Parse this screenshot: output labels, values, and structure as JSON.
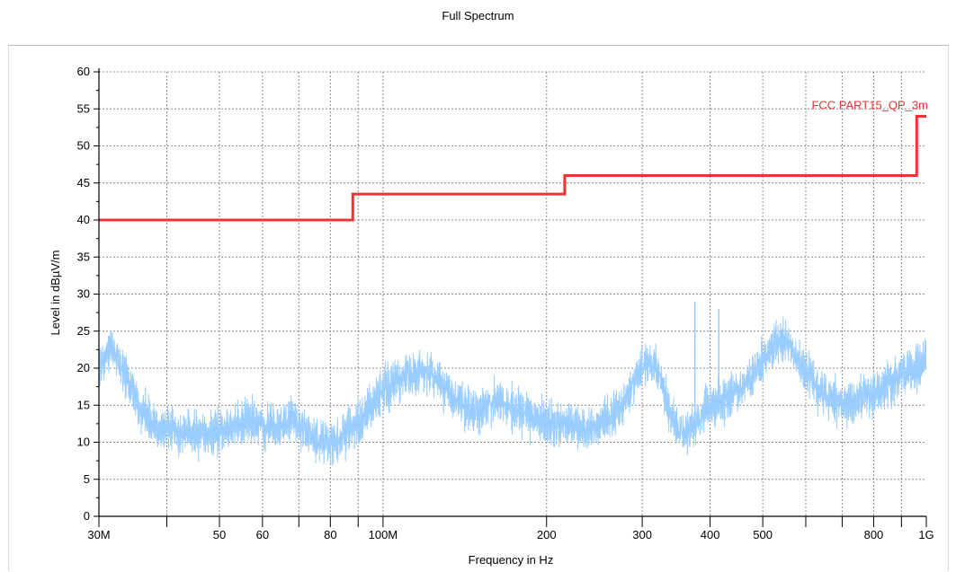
{
  "chart_data": {
    "type": "line",
    "title": "Full Spectrum",
    "xlabel": "Frequency in Hz",
    "ylabel": "Level in dBµV/m",
    "x_scale": "log",
    "xlim": [
      30000000,
      1000000000
    ],
    "ylim": [
      0,
      60
    ],
    "grid": true,
    "x_ticks": [
      {
        "value": 30000000,
        "label": "30M"
      },
      {
        "value": 50000000,
        "label": "50"
      },
      {
        "value": 60000000,
        "label": "60"
      },
      {
        "value": 80000000,
        "label": "80"
      },
      {
        "value": 100000000,
        "label": "100M"
      },
      {
        "value": 200000000,
        "label": "200"
      },
      {
        "value": 300000000,
        "label": "300"
      },
      {
        "value": 400000000,
        "label": "400"
      },
      {
        "value": 500000000,
        "label": "500"
      },
      {
        "value": 800000000,
        "label": "800"
      },
      {
        "value": 1000000000,
        "label": "1G"
      }
    ],
    "x_minor_ticks": [
      40000000,
      70000000,
      90000000,
      600000000,
      700000000,
      900000000
    ],
    "y_ticks": [
      0,
      5,
      10,
      15,
      20,
      25,
      30,
      35,
      40,
      45,
      50,
      55,
      60
    ],
    "series": [
      {
        "name": "FCC PART15_QP_3m",
        "color": "#ee3333",
        "kind": "step",
        "points": [
          [
            30000000,
            40
          ],
          [
            88000000,
            40
          ],
          [
            88000000,
            43.5
          ],
          [
            216000000,
            43.5
          ],
          [
            216000000,
            46
          ],
          [
            960000000,
            46
          ],
          [
            960000000,
            54
          ],
          [
            1000000000,
            54
          ]
        ]
      },
      {
        "color": "#99ccff",
        "kind": "noise",
        "points": [
          [
            30000000,
            20
          ],
          [
            31500000,
            23
          ],
          [
            32500000,
            21
          ],
          [
            34000000,
            18
          ],
          [
            36000000,
            14
          ],
          [
            38000000,
            12.5
          ],
          [
            41000000,
            11.5
          ],
          [
            44000000,
            11
          ],
          [
            47000000,
            11
          ],
          [
            52000000,
            12
          ],
          [
            56000000,
            13
          ],
          [
            60000000,
            12.5
          ],
          [
            64000000,
            12
          ],
          [
            68000000,
            13
          ],
          [
            71000000,
            12
          ],
          [
            76000000,
            10
          ],
          [
            80000000,
            9.5
          ],
          [
            84000000,
            11
          ],
          [
            88000000,
            12
          ],
          [
            93000000,
            14
          ],
          [
            100000000,
            17
          ],
          [
            110000000,
            19
          ],
          [
            120000000,
            19.5
          ],
          [
            128000000,
            18
          ],
          [
            135000000,
            16
          ],
          [
            145000000,
            14
          ],
          [
            155000000,
            15
          ],
          [
            165000000,
            15.5
          ],
          [
            175000000,
            14.5
          ],
          [
            190000000,
            13
          ],
          [
            210000000,
            12.5
          ],
          [
            230000000,
            12
          ],
          [
            250000000,
            12
          ],
          [
            270000000,
            14
          ],
          [
            290000000,
            18
          ],
          [
            305000000,
            21
          ],
          [
            318000000,
            20
          ],
          [
            330000000,
            17
          ],
          [
            345000000,
            12
          ],
          [
            360000000,
            11
          ],
          [
            380000000,
            13
          ],
          [
            400000000,
            15
          ],
          [
            430000000,
            16
          ],
          [
            460000000,
            17.5
          ],
          [
            490000000,
            20
          ],
          [
            510000000,
            22
          ],
          [
            540000000,
            24
          ],
          [
            560000000,
            23
          ],
          [
            590000000,
            20
          ],
          [
            630000000,
            17
          ],
          [
            680000000,
            15.5
          ],
          [
            750000000,
            16
          ],
          [
            820000000,
            17
          ],
          [
            880000000,
            18.5
          ],
          [
            940000000,
            19.5
          ],
          [
            1000000000,
            20.5
          ]
        ],
        "spikes": [
          [
            375000000,
            29
          ],
          [
            415000000,
            28
          ]
        ]
      }
    ]
  }
}
